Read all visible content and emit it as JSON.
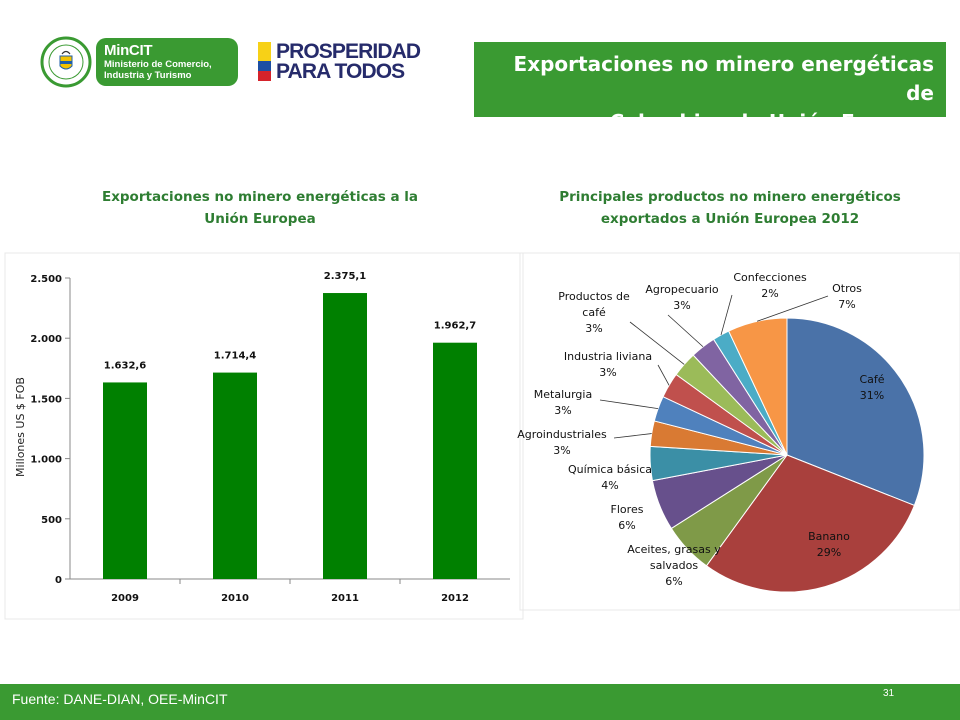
{
  "header": {
    "ministry_short": "MinCIT",
    "ministry_full": "Ministerio de Comercio, Industria y Turismo",
    "seal_text": "REPÚBLICA DE COLOMBIA",
    "slogan_line1": "PROSPERIDAD",
    "slogan_line2": "PARA TODOS",
    "title_line1": "Exportaciones no minero energéticas de",
    "title_line2": "Colombia a la Unión Europea"
  },
  "colors": {
    "brand_green": "#3a9a32",
    "bar_green": "#008000",
    "title_green": "#2e7d32",
    "navy": "#262b6b"
  },
  "chart_data": [
    {
      "type": "bar",
      "title_line1": "Exportaciones no minero energéticas a la",
      "title_line2": "Unión Europea",
      "ylabel": "Millones US $ FOB",
      "categories": [
        "2009",
        "2010",
        "2011",
        "2012"
      ],
      "values": [
        1632.6,
        1714.4,
        2375.1,
        1962.7
      ],
      "data_labels": [
        "1.632,6",
        "1.714,4",
        "2.375,1",
        "1.962,7"
      ],
      "ylim": [
        0,
        2500
      ],
      "yticks": [
        0,
        500,
        1000,
        1500,
        2000,
        2500
      ],
      "ytick_labels": [
        "0",
        "500",
        "1.000",
        "1.500",
        "2.000",
        "2.500"
      ],
      "color": "#008000"
    },
    {
      "type": "pie",
      "title_line1": "Principales productos  no minero energéticos",
      "title_line2": "exportados a Unión Europea 2012",
      "slices": [
        {
          "label": [
            "Café"
          ],
          "pct": "31%",
          "value": 31,
          "color": "#4a72a8"
        },
        {
          "label": [
            "Banano"
          ],
          "pct": "29%",
          "value": 29,
          "color": "#a9403d"
        },
        {
          "label": [
            "Aceites, grasas y",
            "salvados"
          ],
          "pct": "6%",
          "value": 6,
          "color": "#7f9a48"
        },
        {
          "label": [
            "Flores"
          ],
          "pct": "6%",
          "value": 6,
          "color": "#67508c"
        },
        {
          "label": [
            "Química básica"
          ],
          "pct": "4%",
          "value": 4,
          "color": "#3b8fa6"
        },
        {
          "label": [
            "Agroindustriales"
          ],
          "pct": "3%",
          "value": 3,
          "color": "#d97a33"
        },
        {
          "label": [
            "Metalurgia"
          ],
          "pct": "3%",
          "value": 3,
          "color": "#4f81bd"
        },
        {
          "label": [
            "Industria liviana"
          ],
          "pct": "3%",
          "value": 3,
          "color": "#c0504d"
        },
        {
          "label": [
            "Productos de",
            "café"
          ],
          "pct": "3%",
          "value": 3,
          "color": "#9bbb59"
        },
        {
          "label": [
            "Agropecuario"
          ],
          "pct": "3%",
          "value": 3,
          "color": "#8064a2"
        },
        {
          "label": [
            "Confecciones"
          ],
          "pct": "2%",
          "value": 2,
          "color": "#4bacc6"
        },
        {
          "label": [
            "Otros"
          ],
          "pct": "7%",
          "value": 7,
          "color": "#f79646"
        }
      ]
    }
  ],
  "footer": {
    "source": "Fuente: DANE-DIAN, OEE-MinCIT",
    "page": "31"
  }
}
